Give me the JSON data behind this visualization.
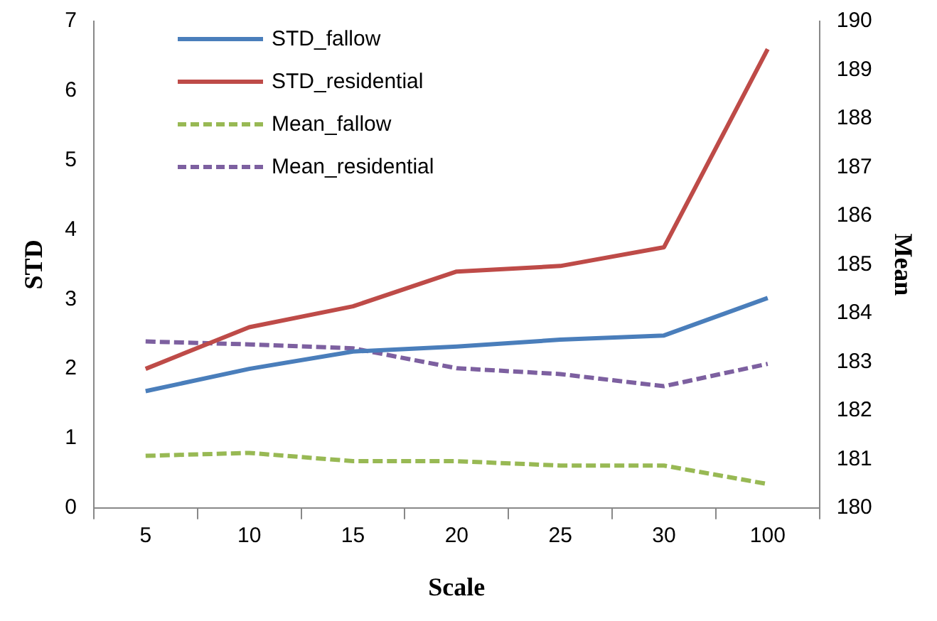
{
  "chart_data": {
    "type": "line",
    "xlabel": "Scale",
    "ylabel": "STD",
    "y2label": "Mean",
    "categories": [
      "5",
      "10",
      "15",
      "20",
      "25",
      "30",
      "100"
    ],
    "series": [
      {
        "name": "STD_fallow",
        "color": "#4a7ebb",
        "line_style": "solid",
        "values": [
          1.68,
          2.0,
          2.25,
          2.32,
          2.42,
          2.48,
          3.02
        ]
      },
      {
        "name": "STD_residential",
        "color": "#be4b48",
        "line_style": "solid",
        "values": [
          2.0,
          2.6,
          2.9,
          3.4,
          3.48,
          3.75,
          6.6
        ]
      },
      {
        "name": "Mean_fallow",
        "color": "#98b954",
        "line_style": "dashed",
        "axis": "y2",
        "values": [
          181.07,
          181.13,
          180.96,
          180.96,
          180.87,
          180.87,
          180.49
        ]
      },
      {
        "name": "Mean_residential",
        "color": "#7d60a0",
        "line_style": "dashed",
        "axis": "y2",
        "values": [
          183.42,
          183.36,
          183.28,
          182.87,
          182.75,
          182.5,
          182.96
        ]
      }
    ],
    "ylim": [
      0,
      7
    ],
    "yticks": [
      0,
      1,
      2,
      3,
      4,
      5,
      6,
      7
    ],
    "y2lim": [
      180,
      190
    ],
    "y2ticks": [
      180,
      181,
      182,
      183,
      184,
      185,
      186,
      187,
      188,
      189,
      190
    ],
    "grid": false,
    "legend": "top left",
    "marker": "none"
  }
}
